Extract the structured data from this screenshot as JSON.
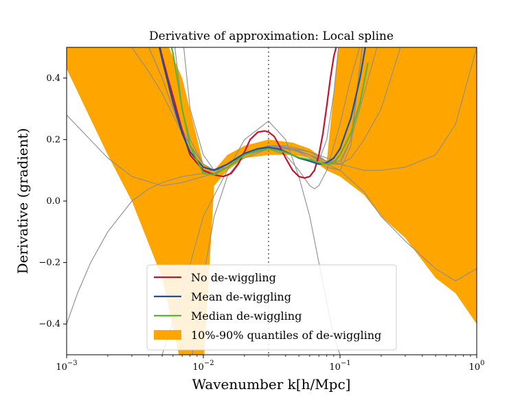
{
  "chart_data": {
    "type": "line",
    "title": "Derivative of approximation: Local spline",
    "xlabel": "Wavenumber k[h/Mpc]",
    "ylabel": "Derivative (gradient)",
    "xscale": "log",
    "xlim": [
      0.001,
      1.0
    ],
    "ylim": [
      -0.5,
      0.5
    ],
    "x_ticks": [
      {
        "value": 0.001,
        "base": "10",
        "exp": "−3"
      },
      {
        "value": 0.01,
        "base": "10",
        "exp": "−2"
      },
      {
        "value": 0.1,
        "base": "10",
        "exp": "−1"
      },
      {
        "value": 1.0,
        "base": "10",
        "exp": "0"
      }
    ],
    "y_ticks": [
      {
        "value": 0.4,
        "label": "0.4"
      },
      {
        "value": 0.2,
        "label": "0.2"
      },
      {
        "value": 0.0,
        "label": "0.0"
      },
      {
        "value": -0.2,
        "label": "−0.2"
      },
      {
        "value": -0.4,
        "label": "−0.4"
      }
    ],
    "vline": {
      "x": 0.03,
      "style": "dotted",
      "color": "#808080"
    },
    "legend_position": "lower center",
    "colors": {
      "no_dewiggling": "#c8102e",
      "mean": "#1f4e9c",
      "median": "#5bb535",
      "band": "#ffa500",
      "samples": "#8c8c8c"
    },
    "band": {
      "name": "10%-90% quantiles of de-wiggling",
      "x": [
        0.001,
        0.002,
        0.003,
        0.005,
        0.007,
        0.01,
        0.012,
        0.015,
        0.02,
        0.03,
        0.045,
        0.06,
        0.08,
        0.1,
        0.15,
        0.2,
        0.3,
        0.5,
        0.7,
        1.0
      ],
      "upper": [
        0.55,
        0.55,
        0.55,
        0.55,
        0.4,
        0.12,
        0.1,
        0.15,
        0.18,
        0.2,
        0.19,
        0.17,
        0.13,
        0.55,
        0.55,
        0.55,
        0.55,
        0.55,
        0.55,
        0.55
      ],
      "lower": [
        0.43,
        0.15,
        0.0,
        -0.25,
        -0.55,
        -0.55,
        0.05,
        0.1,
        0.14,
        0.15,
        0.15,
        0.14,
        0.1,
        0.08,
        0.02,
        -0.05,
        -0.12,
        -0.25,
        -0.3,
        -0.4
      ]
    },
    "series": [
      {
        "name": "No de-wiggling",
        "x": [
          0.0045,
          0.005,
          0.0055,
          0.006,
          0.007,
          0.008,
          0.01,
          0.012,
          0.014,
          0.016,
          0.018,
          0.02,
          0.022,
          0.025,
          0.028,
          0.03,
          0.033,
          0.036,
          0.04,
          0.045,
          0.05,
          0.055,
          0.06,
          0.065,
          0.07,
          0.075,
          0.08,
          0.085,
          0.09,
          0.1
        ],
        "y": [
          0.55,
          0.47,
          0.4,
          0.34,
          0.23,
          0.15,
          0.1,
          0.085,
          0.08,
          0.09,
          0.12,
          0.16,
          0.2,
          0.224,
          0.228,
          0.225,
          0.21,
          0.18,
          0.14,
          0.1,
          0.08,
          0.075,
          0.08,
          0.1,
          0.15,
          0.22,
          0.31,
          0.4,
          0.47,
          0.55
        ]
      },
      {
        "name": "Mean de-wiggling",
        "x": [
          0.0045,
          0.005,
          0.006,
          0.007,
          0.008,
          0.01,
          0.012,
          0.015,
          0.02,
          0.025,
          0.03,
          0.035,
          0.04,
          0.05,
          0.06,
          0.07,
          0.08,
          0.09,
          0.1,
          0.12,
          0.14,
          0.16
        ],
        "y": [
          0.55,
          0.46,
          0.32,
          0.22,
          0.16,
          0.11,
          0.1,
          0.12,
          0.155,
          0.17,
          0.175,
          0.17,
          0.16,
          0.14,
          0.13,
          0.12,
          0.125,
          0.14,
          0.17,
          0.27,
          0.4,
          0.55
        ]
      },
      {
        "name": "Median de-wiggling",
        "x": [
          0.0055,
          0.006,
          0.007,
          0.008,
          0.01,
          0.012,
          0.015,
          0.02,
          0.025,
          0.03,
          0.035,
          0.04,
          0.05,
          0.06,
          0.07,
          0.08,
          0.09,
          0.1,
          0.12,
          0.14,
          0.16
        ],
        "y": [
          0.55,
          0.48,
          0.3,
          0.18,
          0.09,
          0.085,
          0.11,
          0.15,
          0.165,
          0.17,
          0.165,
          0.158,
          0.142,
          0.135,
          0.125,
          0.12,
          0.125,
          0.15,
          0.22,
          0.32,
          0.45
        ]
      }
    ],
    "samples": [
      {
        "x": [
          0.001,
          0.002,
          0.003,
          0.005,
          0.007,
          0.01,
          0.012,
          0.015,
          0.02,
          0.025,
          0.03,
          0.035,
          0.045,
          0.06,
          0.08,
          0.1,
          0.15,
          0.2,
          0.3,
          0.5,
          0.7,
          1.0
        ],
        "y": [
          0.28,
          0.14,
          0.08,
          0.05,
          0.06,
          0.08,
          0.09,
          0.12,
          0.15,
          0.17,
          0.18,
          0.18,
          0.17,
          0.15,
          0.12,
          0.1,
          0.03,
          -0.05,
          -0.13,
          -0.22,
          -0.26,
          -0.22
        ]
      },
      {
        "x": [
          0.001,
          0.0012,
          0.0015,
          0.002,
          0.003,
          0.004,
          0.005,
          0.007,
          0.01,
          0.015,
          0.02,
          0.025,
          0.03,
          0.04,
          0.05,
          0.06,
          0.08,
          0.1,
          0.15,
          0.2,
          0.3,
          0.5,
          0.7,
          1.0
        ],
        "y": [
          -0.4,
          -0.3,
          -0.2,
          -0.1,
          0.0,
          0.04,
          0.06,
          0.08,
          0.09,
          0.12,
          0.155,
          0.17,
          0.18,
          0.18,
          0.17,
          0.16,
          0.14,
          0.12,
          0.1,
          0.1,
          0.11,
          0.15,
          0.25,
          0.5
        ]
      },
      {
        "x": [
          0.004,
          0.005,
          0.007,
          0.01,
          0.015,
          0.02,
          0.03,
          0.04,
          0.05,
          0.06,
          0.07,
          0.08,
          0.09,
          0.1,
          0.12
        ],
        "y": [
          -0.55,
          -0.5,
          -0.3,
          -0.05,
          0.1,
          0.2,
          0.26,
          0.2,
          0.08,
          -0.05,
          -0.2,
          -0.33,
          -0.44,
          -0.5,
          -0.55
        ]
      },
      {
        "x": [
          0.008,
          0.01,
          0.012,
          0.015,
          0.02,
          0.03,
          0.04,
          0.05,
          0.06,
          0.065,
          0.07,
          0.08,
          0.1,
          0.12,
          0.15
        ],
        "y": [
          -0.55,
          -0.25,
          -0.05,
          0.08,
          0.15,
          0.17,
          0.15,
          0.1,
          0.05,
          0.04,
          0.05,
          0.1,
          0.25,
          0.4,
          0.55
        ]
      },
      {
        "x": [
          0.0035,
          0.004,
          0.005,
          0.006,
          0.007,
          0.008,
          0.01,
          0.012,
          0.015,
          0.02,
          0.03,
          0.045,
          0.06,
          0.08,
          0.1,
          0.12,
          0.15
        ],
        "y": [
          0.55,
          0.5,
          0.4,
          0.3,
          0.22,
          0.15,
          0.095,
          0.09,
          0.11,
          0.15,
          0.18,
          0.17,
          0.14,
          0.11,
          0.1,
          0.18,
          0.55
        ]
      },
      {
        "x": [
          0.006,
          0.007,
          0.008,
          0.01,
          0.012,
          0.015,
          0.02,
          0.03,
          0.045,
          0.06,
          0.07,
          0.08,
          0.09,
          0.1
        ],
        "y": [
          0.55,
          0.3,
          0.2,
          0.12,
          0.1,
          0.12,
          0.15,
          0.17,
          0.17,
          0.15,
          0.13,
          0.2,
          0.35,
          0.55
        ]
      },
      {
        "x": [
          0.004,
          0.005,
          0.006,
          0.008,
          0.01,
          0.012,
          0.015,
          0.02,
          0.03,
          0.04,
          0.05,
          0.06,
          0.08,
          0.1,
          0.12,
          0.15,
          0.2
        ],
        "y": [
          0.5,
          0.4,
          0.3,
          0.18,
          0.12,
          0.1,
          0.11,
          0.15,
          0.175,
          0.17,
          0.16,
          0.15,
          0.13,
          0.13,
          0.2,
          0.35,
          0.55
        ]
      },
      {
        "x": [
          0.002,
          0.003,
          0.004,
          0.005,
          0.007,
          0.01,
          0.012,
          0.015,
          0.02,
          0.03,
          0.045,
          0.06,
          0.08,
          0.1,
          0.12,
          0.15
        ],
        "y": [
          0.55,
          0.5,
          0.42,
          0.35,
          0.22,
          0.12,
          0.1,
          0.12,
          0.15,
          0.18,
          0.17,
          0.15,
          0.12,
          0.12,
          0.2,
          0.55
        ]
      },
      {
        "x": [
          0.007,
          0.008,
          0.01,
          0.012,
          0.015,
          0.02,
          0.03,
          0.045,
          0.06,
          0.08,
          0.1,
          0.12,
          0.15,
          0.2,
          0.3
        ],
        "y": [
          0.55,
          0.3,
          0.15,
          0.1,
          0.11,
          0.14,
          0.17,
          0.17,
          0.16,
          0.13,
          0.12,
          0.14,
          0.2,
          0.3,
          0.55
        ]
      }
    ]
  }
}
